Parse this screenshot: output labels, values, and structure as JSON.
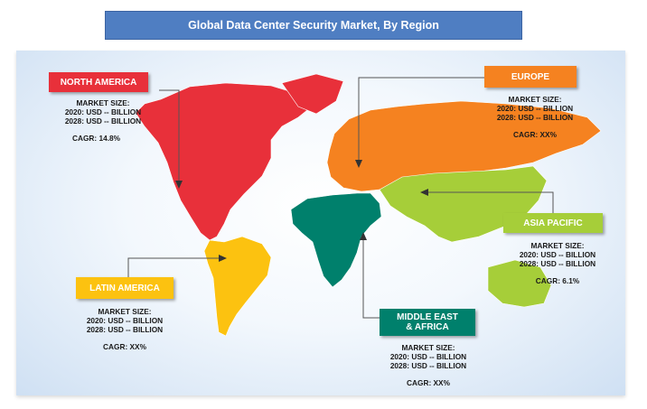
{
  "title": "Global Data Center Security Market, By Region",
  "colors": {
    "north_america": "#e8303a",
    "europe": "#f58220",
    "asia_pacific": "#a6ce39",
    "latin_america": "#fcc210",
    "middle_east_africa": "#00806c",
    "title_bar": "#4f7ec2"
  },
  "regions": {
    "north_america": {
      "label": "NORTH AMERICA",
      "market_size_label": "MARKET SIZE:",
      "line_2020": "2020: USD -- BILLION",
      "line_2028": "2028: USD -- BILLION",
      "cagr": "CAGR: 14.8%"
    },
    "europe": {
      "label": "EUROPE",
      "market_size_label": "MARKET SIZE:",
      "line_2020": "2020: USD -- BILLION",
      "line_2028": "2028: USD -- BILLION",
      "cagr": "CAGR: XX%"
    },
    "asia_pacific": {
      "label": "ASIA PACIFIC",
      "market_size_label": "MARKET SIZE:",
      "line_2020": "2020: USD -- BILLION",
      "line_2028": "2028: USD -- BILLION",
      "cagr": "CAGR: 6.1%"
    },
    "latin_america": {
      "label": "LATIN AMERICA",
      "market_size_label": "MARKET SIZE:",
      "line_2020": "2020: USD -- BILLION",
      "line_2028": "2028: USD -- BILLION",
      "cagr": "CAGR: XX%"
    },
    "middle_east_africa": {
      "label_line1": "MIDDLE EAST",
      "label_line2": "& AFRICA",
      "market_size_label": "MARKET SIZE:",
      "line_2020": "2020: USD -- BILLION",
      "line_2028": "2028: USD -- BILLION",
      "cagr": "CAGR: XX%"
    }
  }
}
